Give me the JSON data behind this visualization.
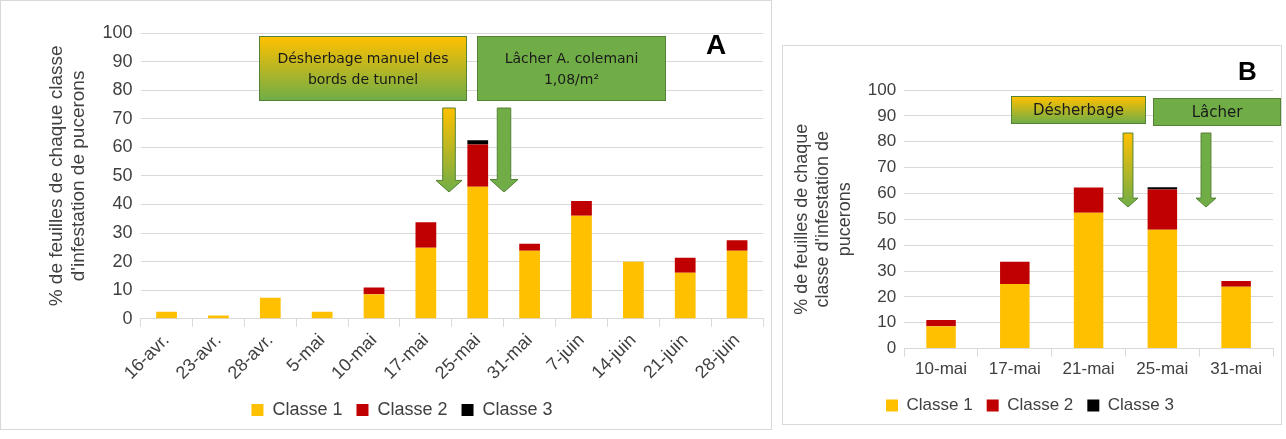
{
  "chart_data": [
    {
      "type": "bar",
      "title": "A",
      "ylabel": "% de feuilles de chaque classe d'infestation de pucerons",
      "categories": [
        "16-avr.",
        "23-avr.",
        "28-avr.",
        "5-mai",
        "10-mai",
        "17-mai",
        "25-mai",
        "31-mai",
        "7-juin",
        "14-juin",
        "21-juin",
        "28-juin"
      ],
      "stacked": true,
      "series": [
        {
          "name": "Classe 1",
          "color": "#ffc000",
          "values": [
            2.5,
            1.2,
            7.4,
            2.5,
            8.6,
            24.9,
            46.2,
            23.8,
            36.1,
            20,
            16.1,
            23.8
          ]
        },
        {
          "name": "Classe 2",
          "color": "#c00000",
          "values": [
            0,
            0,
            0,
            0,
            2.4,
            8.9,
            14.8,
            2.5,
            5.1,
            0,
            5.3,
            3.7
          ]
        },
        {
          "name": "Classe 3",
          "color": "#000000",
          "values": [
            0,
            0,
            0,
            0,
            0,
            0,
            1.5,
            0,
            0,
            0,
            0,
            0
          ]
        }
      ],
      "ylim": [
        0,
        100
      ],
      "yticks": [
        0,
        10,
        20,
        30,
        40,
        50,
        60,
        70,
        80,
        90,
        100
      ],
      "grid": "y",
      "legend": "bottom",
      "annotations": [
        "Désherbage manuel des bords de tunnel",
        "Lâcher A. colemani 1,08/m²"
      ]
    },
    {
      "type": "bar",
      "title": "B",
      "ylabel": "% de feuilles de chaque classe d'infestation de pucerons",
      "categories": [
        "10-mai",
        "17-mai",
        "21-mai",
        "25-mai",
        "31-mai"
      ],
      "stacked": true,
      "series": [
        {
          "name": "Classe 1",
          "color": "#ffc000",
          "values": [
            8.6,
            25,
            52.5,
            46,
            23.9
          ]
        },
        {
          "name": "Classe 2",
          "color": "#c00000",
          "values": [
            2.5,
            8.6,
            9.8,
            15.5,
            2.2
          ]
        },
        {
          "name": "Classe 3",
          "color": "#000000",
          "values": [
            0,
            0,
            0,
            0.9,
            0
          ]
        }
      ],
      "ylim": [
        0,
        100
      ],
      "yticks": [
        0,
        10,
        20,
        30,
        40,
        50,
        60,
        70,
        80,
        90,
        100
      ],
      "grid": "y",
      "legend": "bottom",
      "annotations": [
        "Désherbage",
        "Lâcher"
      ]
    }
  ]
}
